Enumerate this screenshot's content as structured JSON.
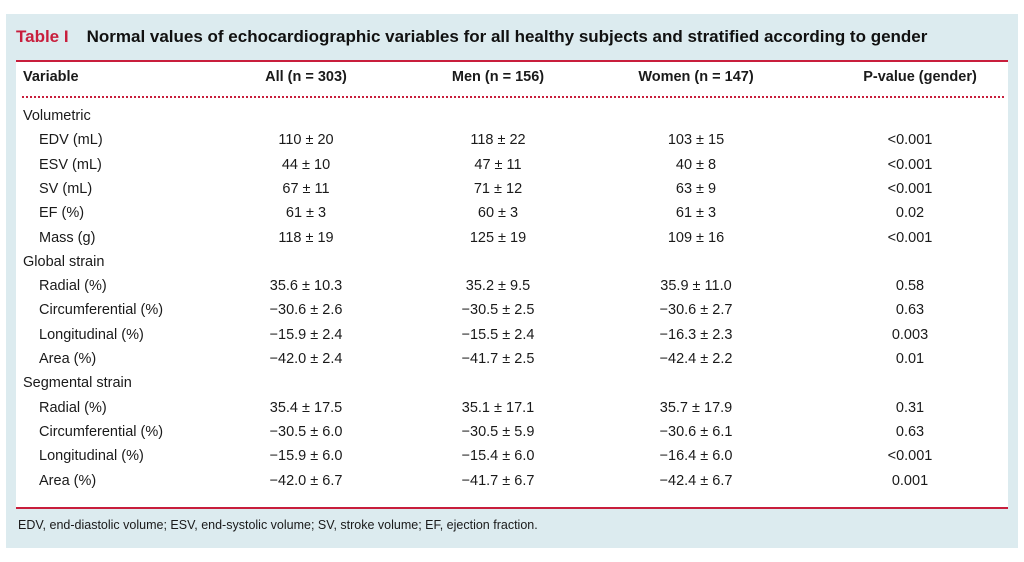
{
  "caption": {
    "number": "Table I",
    "title": "Normal values of echocardiographic variables for all healthy subjects and stratified according to gender"
  },
  "header": {
    "variable": "Variable",
    "all": "All (n = 303)",
    "men": "Men (n = 156)",
    "women": "Women (n = 147)",
    "pvalue": "P-value (gender)"
  },
  "sections": [
    {
      "title": "Volumetric",
      "rows": [
        {
          "label": "EDV (mL)",
          "all": "110 ± 20",
          "men": "118 ± 22",
          "women": "103 ± 15",
          "p": "<0.001"
        },
        {
          "label": "ESV (mL)",
          "all": "44 ± 10",
          "men": "47 ± 11",
          "women": "40 ± 8",
          "p": "<0.001"
        },
        {
          "label": "SV (mL)",
          "all": "67 ± 11",
          "men": "71 ± 12",
          "women": "63 ± 9",
          "p": "<0.001"
        },
        {
          "label": "EF (%)",
          "all": "61 ± 3",
          "men": "60 ± 3",
          "women": "61 ± 3",
          "p": "0.02"
        },
        {
          "label": "Mass (g)",
          "all": "118 ± 19",
          "men": "125 ± 19",
          "women": "109 ± 16",
          "p": "<0.001"
        }
      ]
    },
    {
      "title": "Global strain",
      "rows": [
        {
          "label": "Radial (%)",
          "all": "35.6 ± 10.3",
          "men": "35.2 ± 9.5",
          "women": "35.9 ± 11.0",
          "p": "0.58"
        },
        {
          "label": "Circumferential (%)",
          "all": "−30.6 ± 2.6",
          "men": "−30.5 ± 2.5",
          "women": "−30.6 ± 2.7",
          "p": "0.63"
        },
        {
          "label": "Longitudinal (%)",
          "all": "−15.9 ± 2.4",
          "men": "−15.5 ± 2.4",
          "women": "−16.3 ± 2.3",
          "p": "0.003"
        },
        {
          "label": "Area (%)",
          "all": "−42.0 ± 2.4",
          "men": "−41.7 ± 2.5",
          "women": "−42.4 ± 2.2",
          "p": "0.01"
        }
      ]
    },
    {
      "title": "Segmental strain",
      "rows": [
        {
          "label": "Radial (%)",
          "all": "35.4 ± 17.5",
          "men": "35.1 ± 17.1",
          "women": "35.7 ± 17.9",
          "p": "0.31"
        },
        {
          "label": "Circumferential (%)",
          "all": "−30.5 ± 6.0",
          "men": "−30.5 ± 5.9",
          "women": "−30.6 ± 6.1",
          "p": "0.63"
        },
        {
          "label": "Longitudinal (%)",
          "all": "−15.9 ± 6.0",
          "men": "−15.4 ± 6.0",
          "women": "−16.4 ± 6.0",
          "p": "<0.001"
        },
        {
          "label": "Area (%)",
          "all": "−42.0 ± 6.7",
          "men": "−41.7 ± 6.7",
          "women": "−42.4 ± 6.7",
          "p": "0.001"
        }
      ]
    }
  ],
  "footnote": "EDV, end-diastolic volume; ESV, end-systolic volume; SV, stroke volume; EF, ejection fraction.",
  "colors": {
    "accent": "#c81e3c",
    "panel": "#dcebef"
  }
}
